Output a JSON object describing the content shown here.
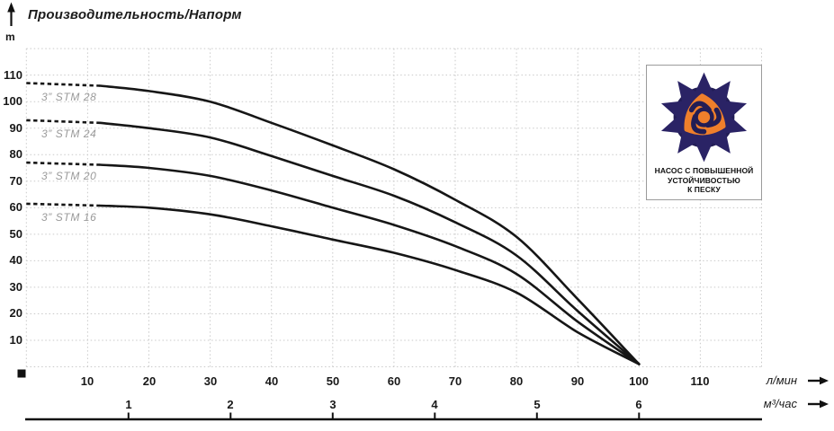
{
  "title": "Производительность/Напорм",
  "y_axis": {
    "unit": "m",
    "ticks": [
      110,
      100,
      90,
      80,
      70,
      60,
      50,
      40,
      30,
      20,
      10
    ]
  },
  "x_axis_lmin": {
    "label": "л/мин",
    "ticks": [
      10,
      20,
      30,
      40,
      50,
      60,
      70,
      80,
      90,
      100,
      110
    ]
  },
  "x_axis_m3h": {
    "label": "м³/час",
    "ticks": [
      1,
      2,
      3,
      4,
      5,
      6
    ]
  },
  "badge": {
    "lines": [
      "НАСОС С ПОВЫШЕННОЙ",
      "УСТОЙЧИВОСТЬЮ",
      "К ПЕСКУ"
    ],
    "logo": "sand-resistant-pump-flower-logo"
  },
  "colors": {
    "curve": "#161616",
    "grid": "#cacaca",
    "curve_label": "#9a9a9a",
    "logo_navy": "#262058",
    "logo_navy_light": "#2e2868",
    "logo_orange": "#ef7f2b",
    "badge_border": "#9b9b9b"
  },
  "chart_data": {
    "type": "line",
    "title": "Производительность/Напорм",
    "ylabel": "m",
    "xlabel_primary": "л/мин",
    "xlabel_secondary": "м³/час",
    "xlim": [
      0,
      120
    ],
    "ylim": [
      0,
      120
    ],
    "grid": true,
    "x": [
      0,
      10,
      20,
      30,
      40,
      50,
      60,
      70,
      80,
      90,
      100
    ],
    "dashed_until_x": 12,
    "convergence_point": {
      "x": 100,
      "y": 1
    },
    "series": [
      {
        "name": "3” STM 28",
        "values": [
          107,
          106.5,
          104,
          100,
          92,
          83.5,
          74.5,
          63,
          49,
          25.5,
          1
        ]
      },
      {
        "name": "3” STM 24",
        "values": [
          93,
          92.5,
          90,
          86.5,
          79.5,
          72,
          64.5,
          54.5,
          42,
          21,
          1
        ]
      },
      {
        "name": "3” STM 20",
        "values": [
          77,
          76.5,
          75,
          72,
          66.5,
          60,
          53.5,
          45.5,
          35,
          17,
          1
        ]
      },
      {
        "name": "3” STM 16",
        "values": [
          61.5,
          61,
          60,
          57.5,
          53,
          48,
          43,
          36.5,
          28,
          13,
          1
        ]
      }
    ]
  }
}
